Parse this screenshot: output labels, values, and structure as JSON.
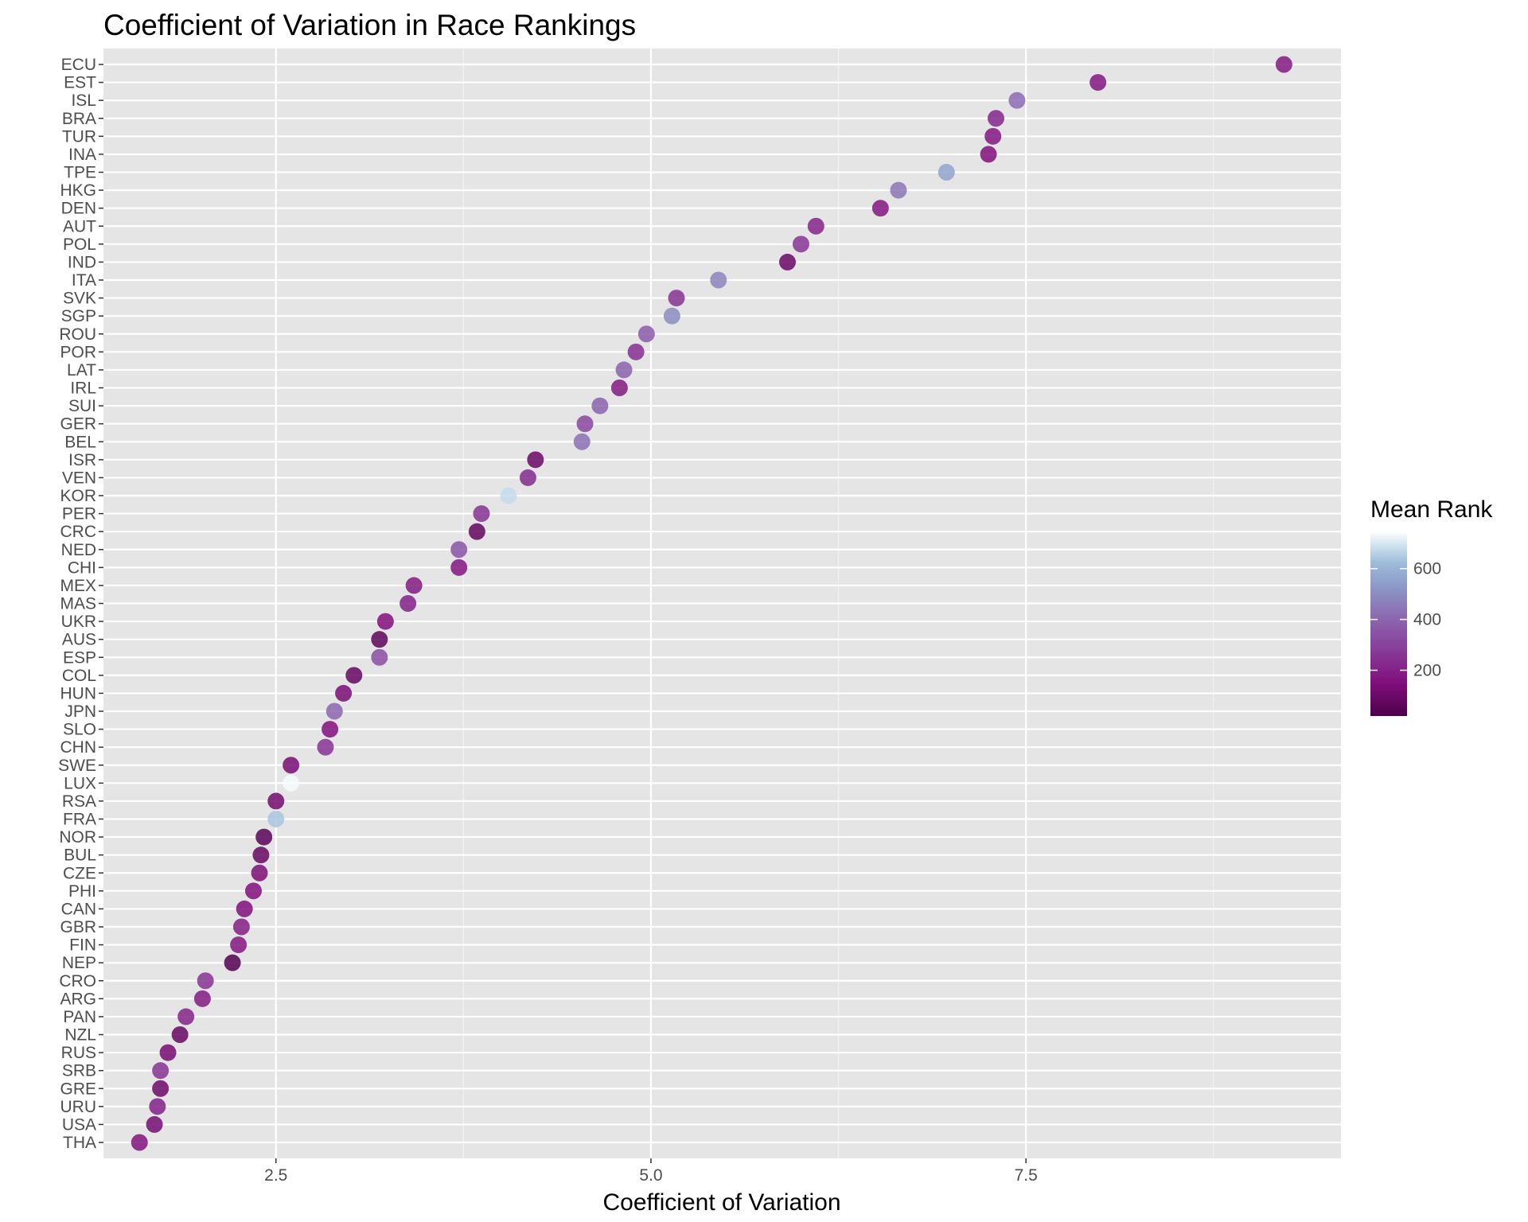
{
  "chart_data": {
    "type": "scatter",
    "title": "Coefficient of Variation in Race Rankings",
    "xlabel": "Coefficient of Variation",
    "ylabel": "",
    "xlim": [
      1.35,
      9.6
    ],
    "x_ticks": [
      2.5,
      5.0,
      7.5
    ],
    "x_tick_labels": [
      "2.5",
      "5.0",
      "7.5"
    ],
    "grid": true,
    "legend": {
      "title": "Mean Rank",
      "position": "right",
      "type": "colorbar",
      "range": [
        20,
        740
      ],
      "ticks": [
        200,
        400,
        600
      ],
      "tick_labels": [
        "200",
        "400",
        "600"
      ],
      "low_color": "#4d004b",
      "mid_color": "#8c6bb1",
      "high_color": "#f7fcfd"
    },
    "points": [
      {
        "country": "ECU",
        "cv": 9.22,
        "mean_rank": 180
      },
      {
        "country": "EST",
        "cv": 7.98,
        "mean_rank": 170
      },
      {
        "country": "ISL",
        "cv": 7.44,
        "mean_rank": 420
      },
      {
        "country": "BRA",
        "cv": 7.3,
        "mean_rank": 220
      },
      {
        "country": "TUR",
        "cv": 7.28,
        "mean_rank": 170
      },
      {
        "country": "INA",
        "cv": 7.25,
        "mean_rank": 150
      },
      {
        "country": "TPE",
        "cv": 6.97,
        "mean_rank": 560
      },
      {
        "country": "HKG",
        "cv": 6.65,
        "mean_rank": 440
      },
      {
        "country": "DEN",
        "cv": 6.53,
        "mean_rank": 170
      },
      {
        "country": "AUT",
        "cv": 6.1,
        "mean_rank": 210
      },
      {
        "country": "POL",
        "cv": 6.0,
        "mean_rank": 260
      },
      {
        "country": "IND",
        "cv": 5.91,
        "mean_rank": 90
      },
      {
        "country": "ITA",
        "cv": 5.45,
        "mean_rank": 480
      },
      {
        "country": "SVK",
        "cv": 5.17,
        "mean_rank": 250
      },
      {
        "country": "SGP",
        "cv": 5.14,
        "mean_rank": 500
      },
      {
        "country": "ROU",
        "cv": 4.97,
        "mean_rank": 370
      },
      {
        "country": "POR",
        "cv": 4.9,
        "mean_rank": 240
      },
      {
        "country": "LAT",
        "cv": 4.82,
        "mean_rank": 390
      },
      {
        "country": "IRL",
        "cv": 4.79,
        "mean_rank": 180
      },
      {
        "country": "SUI",
        "cv": 4.66,
        "mean_rank": 390
      },
      {
        "country": "GER",
        "cv": 4.56,
        "mean_rank": 310
      },
      {
        "country": "BEL",
        "cv": 4.54,
        "mean_rank": 430
      },
      {
        "country": "ISR",
        "cv": 4.23,
        "mean_rank": 90
      },
      {
        "country": "VEN",
        "cv": 4.18,
        "mean_rank": 230
      },
      {
        "country": "KOR",
        "cv": 4.05,
        "mean_rank": 680
      },
      {
        "country": "PER",
        "cv": 3.87,
        "mean_rank": 250
      },
      {
        "country": "CRC",
        "cv": 3.84,
        "mean_rank": 70
      },
      {
        "country": "NED",
        "cv": 3.72,
        "mean_rank": 350
      },
      {
        "country": "CHI",
        "cv": 3.72,
        "mean_rank": 170
      },
      {
        "country": "MEX",
        "cv": 3.42,
        "mean_rank": 180
      },
      {
        "country": "MAS",
        "cv": 3.38,
        "mean_rank": 200
      },
      {
        "country": "UKR",
        "cv": 3.23,
        "mean_rank": 150
      },
      {
        "country": "AUS",
        "cv": 3.19,
        "mean_rank": 60
      },
      {
        "country": "ESP",
        "cv": 3.19,
        "mean_rank": 330
      },
      {
        "country": "COL",
        "cv": 3.02,
        "mean_rank": 80
      },
      {
        "country": "HUN",
        "cv": 2.95,
        "mean_rank": 130
      },
      {
        "country": "JPN",
        "cv": 2.89,
        "mean_rank": 400
      },
      {
        "country": "SLO",
        "cv": 2.86,
        "mean_rank": 150
      },
      {
        "country": "CHN",
        "cv": 2.83,
        "mean_rank": 250
      },
      {
        "country": "SWE",
        "cv": 2.6,
        "mean_rank": 130
      },
      {
        "country": "LUX",
        "cv": 2.6,
        "mean_rank": 740
      },
      {
        "country": "RSA",
        "cv": 2.5,
        "mean_rank": 110
      },
      {
        "country": "FRA",
        "cv": 2.5,
        "mean_rank": 640
      },
      {
        "country": "NOR",
        "cv": 2.42,
        "mean_rank": 50
      },
      {
        "country": "BUL",
        "cv": 2.4,
        "mean_rank": 80
      },
      {
        "country": "CZE",
        "cv": 2.39,
        "mean_rank": 140
      },
      {
        "country": "PHI",
        "cv": 2.35,
        "mean_rank": 150
      },
      {
        "country": "CAN",
        "cv": 2.29,
        "mean_rank": 150
      },
      {
        "country": "GBR",
        "cv": 2.27,
        "mean_rank": 190
      },
      {
        "country": "FIN",
        "cv": 2.25,
        "mean_rank": 170
      },
      {
        "country": "NEP",
        "cv": 2.21,
        "mean_rank": 30
      },
      {
        "country": "CRO",
        "cv": 2.03,
        "mean_rank": 250
      },
      {
        "country": "ARG",
        "cv": 2.01,
        "mean_rank": 180
      },
      {
        "country": "PAN",
        "cv": 1.9,
        "mean_rank": 210
      },
      {
        "country": "NZL",
        "cv": 1.86,
        "mean_rank": 80
      },
      {
        "country": "RUS",
        "cv": 1.78,
        "mean_rank": 120
      },
      {
        "country": "SRB",
        "cv": 1.73,
        "mean_rank": 250
      },
      {
        "country": "GRE",
        "cv": 1.73,
        "mean_rank": 100
      },
      {
        "country": "URU",
        "cv": 1.71,
        "mean_rank": 200
      },
      {
        "country": "USA",
        "cv": 1.69,
        "mean_rank": 120
      },
      {
        "country": "THA",
        "cv": 1.59,
        "mean_rank": 160
      }
    ]
  }
}
